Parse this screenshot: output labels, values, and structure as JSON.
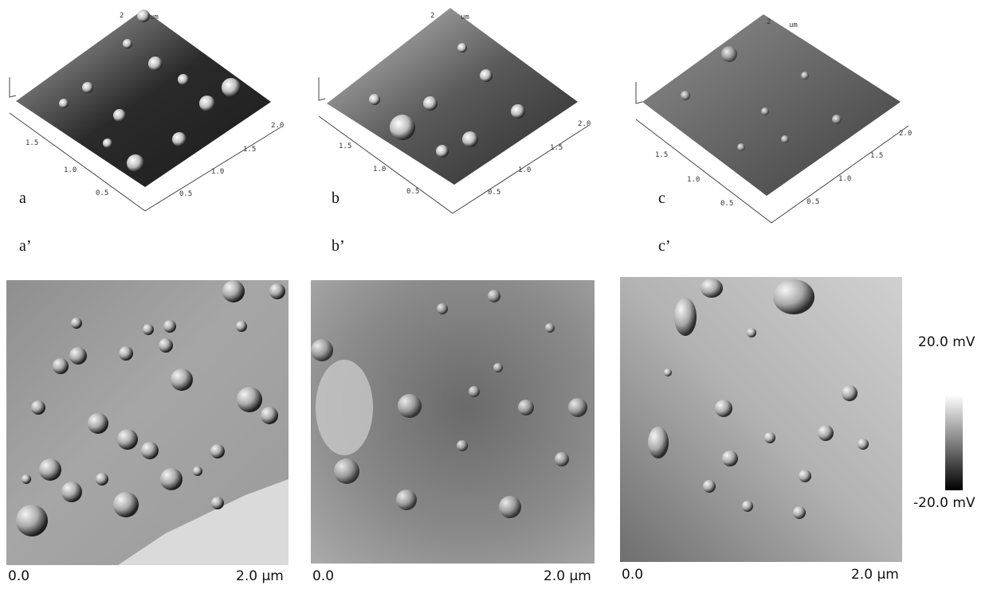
{
  "panels_3d": [
    {
      "letter": "a",
      "axis_unit": "um",
      "ticks_left": [
        "0.5",
        "1.0",
        "1.5"
      ],
      "ticks_right": [
        "0.5",
        "1.0",
        "1.5",
        "2.0"
      ],
      "top_tick": "2"
    },
    {
      "letter": "b",
      "axis_unit": "um",
      "ticks_left": [
        "0.5",
        "1.0",
        "1.5"
      ],
      "ticks_right": [
        "0.5",
        "1.0",
        "1.5",
        "2.0"
      ],
      "top_tick": "2"
    },
    {
      "letter": "c",
      "axis_unit": "um",
      "ticks_left": [
        "0.5",
        "1.0",
        "1.5"
      ],
      "ticks_right": [
        "0.5",
        "1.0",
        "1.5",
        "2.0"
      ],
      "top_tick": "2"
    }
  ],
  "panels_2d": [
    {
      "letter": "a’",
      "axis_start": "0.0",
      "axis_end": "2.0 µm"
    },
    {
      "letter": "b’",
      "axis_start": "0.0",
      "axis_end": "2.0 µm"
    },
    {
      "letter": "c’",
      "axis_start": "0.0",
      "axis_end": "2.0 µm"
    }
  ],
  "colorbar": {
    "max_label": "20.0 mV",
    "min_label": "-20.0 mV"
  }
}
